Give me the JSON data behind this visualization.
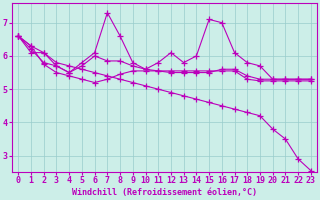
{
  "background_color": "#cceee8",
  "line_color": "#bb00bb",
  "marker": "+",
  "markersize": 4,
  "linewidth": 0.8,
  "xlabel": "Windchill (Refroidissement éolien,°C)",
  "xlabel_fontsize": 6,
  "tick_label_fontsize": 6,
  "grid_color": "#99cccc",
  "xlim": [
    -0.5,
    23.5
  ],
  "ylim": [
    2.5,
    7.6
  ],
  "yticks": [
    3,
    4,
    5,
    6,
    7
  ],
  "xticks": [
    0,
    1,
    2,
    3,
    4,
    5,
    6,
    7,
    8,
    9,
    10,
    11,
    12,
    13,
    14,
    15,
    16,
    17,
    18,
    19,
    20,
    21,
    22,
    23
  ],
  "series": [
    [
      6.6,
      6.3,
      6.1,
      5.8,
      5.7,
      5.6,
      5.5,
      5.4,
      5.3,
      5.2,
      5.1,
      5.0,
      4.9,
      4.8,
      4.7,
      4.6,
      4.5,
      4.4,
      4.3,
      4.2,
      3.8,
      3.5,
      2.9,
      2.55
    ],
    [
      6.6,
      6.2,
      5.8,
      5.7,
      5.5,
      5.8,
      6.1,
      7.3,
      6.6,
      5.8,
      5.6,
      5.8,
      6.1,
      5.8,
      6.0,
      7.1,
      7.0,
      6.1,
      5.8,
      5.7,
      5.3,
      5.3,
      5.3,
      5.3
    ],
    [
      6.6,
      6.1,
      6.1,
      5.7,
      5.5,
      5.7,
      6.0,
      5.85,
      5.85,
      5.7,
      5.6,
      5.55,
      5.5,
      5.5,
      5.5,
      5.5,
      5.6,
      5.6,
      5.4,
      5.3,
      5.3,
      5.3,
      5.3,
      5.3
    ],
    [
      6.6,
      6.3,
      5.75,
      5.5,
      5.4,
      5.3,
      5.2,
      5.3,
      5.45,
      5.55,
      5.55,
      5.55,
      5.55,
      5.55,
      5.55,
      5.55,
      5.55,
      5.55,
      5.3,
      5.25,
      5.25,
      5.25,
      5.25,
      5.25
    ]
  ]
}
